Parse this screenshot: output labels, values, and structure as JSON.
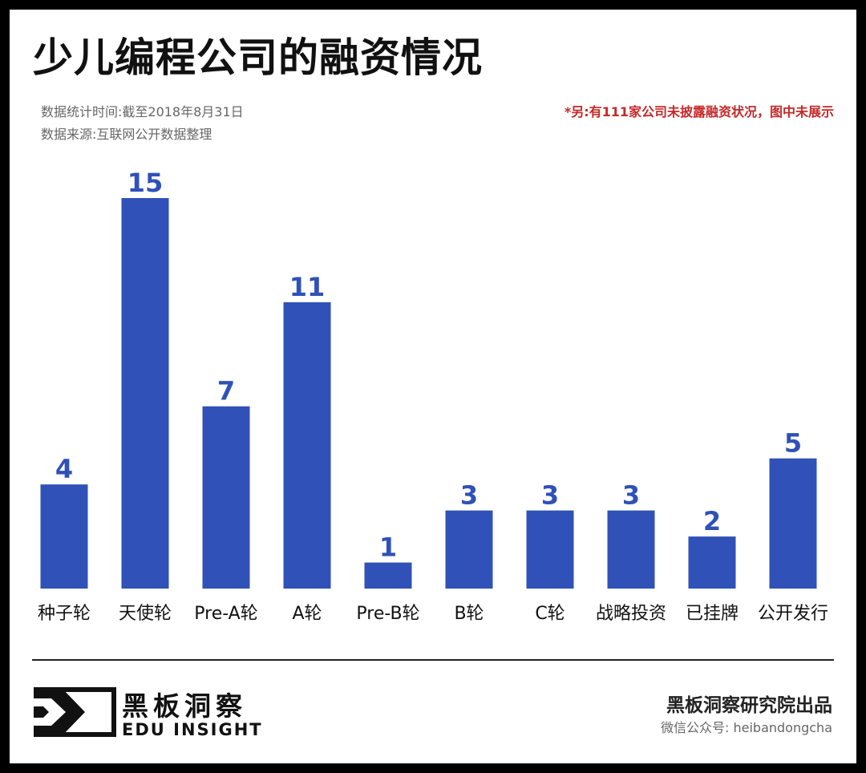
{
  "header": {
    "title": "少儿编程公司的融资情况",
    "stat_time": "数据统计时间:截至2018年8月31日",
    "source": "数据来源:互联网公开数据整理",
    "note": "*另:有111家公司未披露融资状况，图中未展示"
  },
  "chart_data": {
    "type": "bar",
    "title": "少儿编程公司的融资情况",
    "xlabel": "",
    "ylabel": "",
    "categories": [
      "种子轮",
      "天使轮",
      "Pre-A轮",
      "A轮",
      "Pre-B轮",
      "B轮",
      "C轮",
      "战略投资",
      "已挂牌",
      "公开发行"
    ],
    "values": [
      4,
      15,
      7,
      11,
      1,
      3,
      3,
      3,
      2,
      5
    ],
    "ylim": [
      0,
      15
    ],
    "grid": false,
    "legend": "none",
    "bar_color": "#2f51b8",
    "label_color": "#2f51b8"
  },
  "footer": {
    "brand_cn": "黑板洞察",
    "brand_en": "EDU INSIGHT",
    "producer": "黑板洞察研究院出品",
    "wechat": "微信公众号: heibandongcha"
  }
}
